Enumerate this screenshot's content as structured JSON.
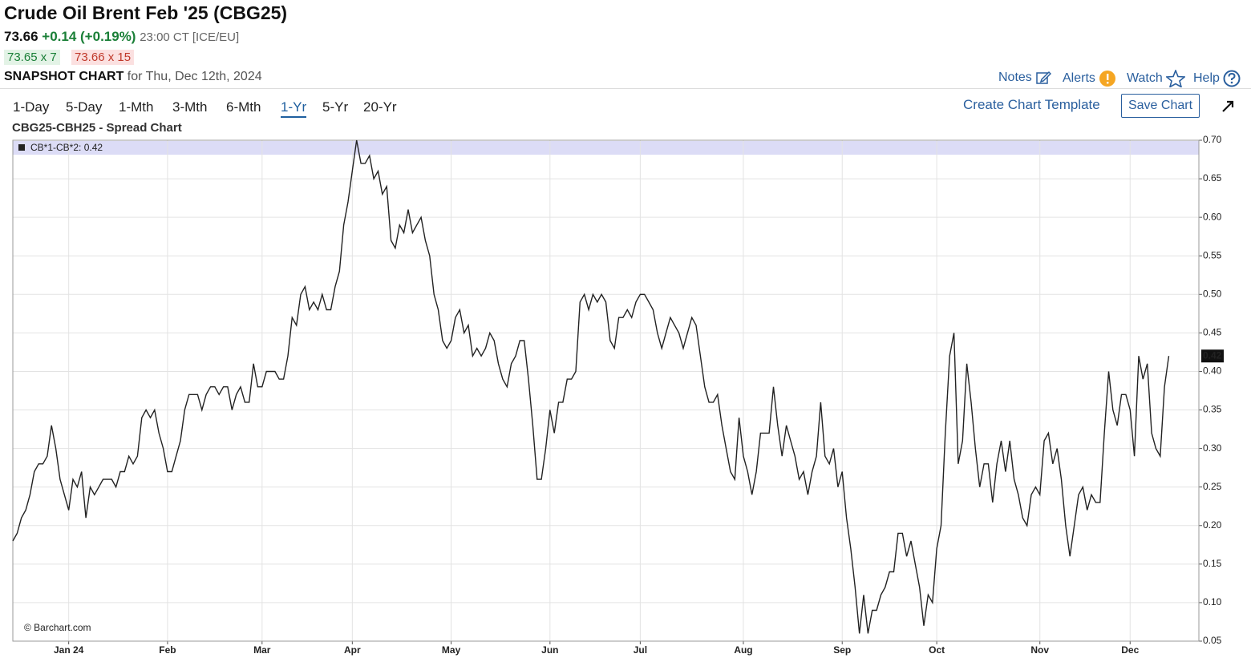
{
  "header": {
    "title": "Crude Oil Brent Feb '25 (CBG25)",
    "price": "73.66",
    "change": "+0.14 (+0.19%)",
    "time": "23:00 CT [ICE/EU]",
    "bid": "73.65 x 7",
    "ask": "73.66 x 15",
    "snapshot": "SNAPSHOT CHART",
    "date": "for Thu, Dec 12th, 2024"
  },
  "nav": [
    "Notes",
    "Alerts",
    "Watch",
    "Help"
  ],
  "periods": [
    "1-Day",
    "5-Day",
    "1-Mth",
    "3-Mth",
    "6-Mth",
    "1-Yr",
    "5-Yr",
    "20-Yr"
  ],
  "active_period": "1-Yr",
  "actions": {
    "template": "Create Chart Template",
    "save": "Save Chart"
  },
  "chart_data": {
    "type": "line",
    "title": "CBG25-CBH25 - Spread Chart",
    "watermark": "© Barchart.com",
    "series": [
      {
        "name": "CB*1-CB*2: 0.42",
        "color": "#222222",
        "values": [
          0.18,
          0.19,
          0.21,
          0.22,
          0.24,
          0.27,
          0.28,
          0.28,
          0.29,
          0.33,
          0.3,
          0.26,
          0.24,
          0.22,
          0.26,
          0.25,
          0.27,
          0.21,
          0.25,
          0.24,
          0.25,
          0.26,
          0.26,
          0.26,
          0.25,
          0.27,
          0.27,
          0.29,
          0.28,
          0.29,
          0.34,
          0.35,
          0.34,
          0.35,
          0.32,
          0.3,
          0.27,
          0.27,
          0.29,
          0.31,
          0.35,
          0.37,
          0.37,
          0.37,
          0.35,
          0.37,
          0.38,
          0.38,
          0.37,
          0.38,
          0.38,
          0.35,
          0.37,
          0.38,
          0.36,
          0.36,
          0.41,
          0.38,
          0.38,
          0.4,
          0.4,
          0.4,
          0.39,
          0.39,
          0.42,
          0.47,
          0.46,
          0.5,
          0.51,
          0.48,
          0.49,
          0.48,
          0.5,
          0.48,
          0.48,
          0.51,
          0.53,
          0.59,
          0.62,
          0.66,
          0.7,
          0.67,
          0.67,
          0.68,
          0.65,
          0.66,
          0.63,
          0.64,
          0.57,
          0.56,
          0.59,
          0.58,
          0.61,
          0.58,
          0.59,
          0.6,
          0.57,
          0.55,
          0.5,
          0.48,
          0.44,
          0.43,
          0.44,
          0.47,
          0.48,
          0.45,
          0.46,
          0.42,
          0.43,
          0.42,
          0.43,
          0.45,
          0.44,
          0.41,
          0.39,
          0.38,
          0.41,
          0.42,
          0.44,
          0.44,
          0.39,
          0.33,
          0.26,
          0.26,
          0.3,
          0.35,
          0.32,
          0.36,
          0.36,
          0.39,
          0.39,
          0.4,
          0.49,
          0.5,
          0.48,
          0.5,
          0.49,
          0.5,
          0.49,
          0.44,
          0.43,
          0.47,
          0.47,
          0.48,
          0.47,
          0.49,
          0.5,
          0.5,
          0.49,
          0.48,
          0.45,
          0.43,
          0.45,
          0.47,
          0.46,
          0.45,
          0.43,
          0.45,
          0.47,
          0.46,
          0.42,
          0.38,
          0.36,
          0.36,
          0.37,
          0.33,
          0.3,
          0.27,
          0.26,
          0.34,
          0.29,
          0.27,
          0.24,
          0.27,
          0.32,
          0.32,
          0.32,
          0.38,
          0.33,
          0.29,
          0.33,
          0.31,
          0.29,
          0.26,
          0.27,
          0.24,
          0.27,
          0.29,
          0.36,
          0.29,
          0.28,
          0.3,
          0.25,
          0.27,
          0.21,
          0.17,
          0.12,
          0.06,
          0.11,
          0.06,
          0.09,
          0.09,
          0.11,
          0.12,
          0.14,
          0.14,
          0.19,
          0.19,
          0.16,
          0.18,
          0.15,
          0.12,
          0.07,
          0.11,
          0.1,
          0.17,
          0.2,
          0.32,
          0.42,
          0.45,
          0.28,
          0.31,
          0.41,
          0.36,
          0.3,
          0.25,
          0.28,
          0.28,
          0.23,
          0.28,
          0.31,
          0.27,
          0.31,
          0.26,
          0.24,
          0.21,
          0.2,
          0.24,
          0.25,
          0.24,
          0.31,
          0.32,
          0.28,
          0.3,
          0.26,
          0.2,
          0.16,
          0.2,
          0.24,
          0.25,
          0.22,
          0.24,
          0.23,
          0.23,
          0.32,
          0.4,
          0.35,
          0.33,
          0.37,
          0.37,
          0.35,
          0.29,
          0.42,
          0.39,
          0.41,
          0.32,
          0.3,
          0.29,
          0.38,
          0.42
        ]
      }
    ],
    "xlim": [
      0,
      276
    ],
    "xticks": [
      {
        "value": 13,
        "label": "Jan 24"
      },
      {
        "value": 36,
        "label": "Feb"
      },
      {
        "value": 58,
        "label": "Mar"
      },
      {
        "value": 79,
        "label": "Apr"
      },
      {
        "value": 102,
        "label": "May"
      },
      {
        "value": 125,
        "label": "Jun"
      },
      {
        "value": 146,
        "label": "Jul"
      },
      {
        "value": 170,
        "label": "Aug"
      },
      {
        "value": 193,
        "label": "Sep"
      },
      {
        "value": 215,
        "label": "Oct"
      },
      {
        "value": 239,
        "label": "Nov"
      },
      {
        "value": 260,
        "label": "Dec"
      }
    ],
    "ylim": [
      0.05,
      0.7
    ],
    "yticks": [
      0.05,
      {
        "value": 0.1,
        "label": "0.10"
      },
      0.15,
      {
        "value": 0.2,
        "label": "0.20"
      },
      0.25,
      {
        "value": 0.3,
        "label": "0.30"
      },
      0.35,
      {
        "value": 0.4,
        "label": "0.40"
      },
      0.45,
      {
        "value": 0.5,
        "label": "0.50"
      },
      0.55,
      {
        "value": 0.6,
        "label": "0.60"
      },
      0.65,
      {
        "value": 0.7,
        "label": "0.70"
      }
    ],
    "grid": true
  }
}
